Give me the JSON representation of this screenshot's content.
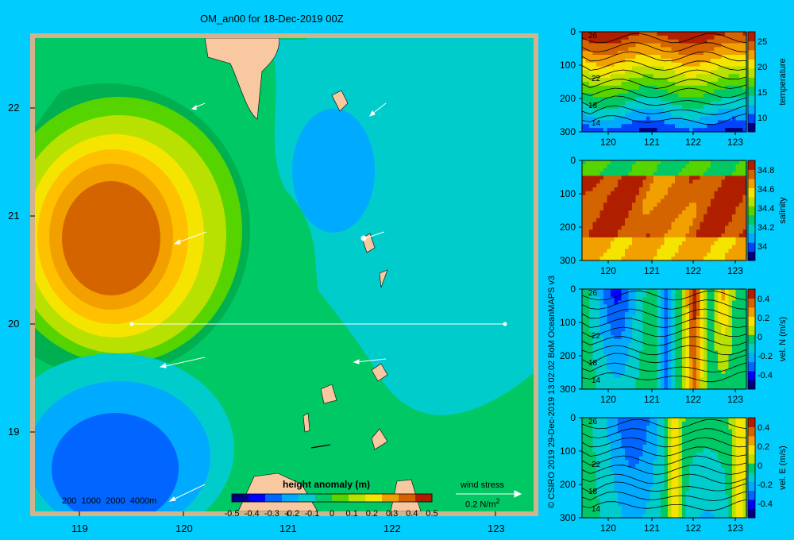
{
  "map": {
    "title": "OM_an00 for 18-Dec-2019 00Z",
    "lat_ticks": [
      "22",
      "21",
      "20",
      "19"
    ],
    "lon_ticks": [
      "119",
      "120",
      "121",
      "122",
      "123"
    ],
    "depth_legend": [
      "200",
      "1000",
      "2000",
      "4000m"
    ],
    "colorbar": {
      "label": "height anomaly (m)",
      "ticks": [
        "-0.5",
        "-0.4",
        "-0.3",
        "-0.2",
        "-0.1",
        "0",
        "0.1",
        "0.2",
        "0.3",
        "0.4",
        "0.5"
      ],
      "colors": [
        "#00007f",
        "#0000ff",
        "#0066ff",
        "#00aaff",
        "#00cccc",
        "#00c864",
        "#55d400",
        "#b8e000",
        "#f5e400",
        "#f2a000",
        "#d46400",
        "#b01e00"
      ]
    },
    "wind_key": {
      "label": "wind stress",
      "value": "0.2 N/m",
      "exponent": "2"
    }
  },
  "credit": "© CSIRO 2019   29-Dec-2019 13:02:02 BoM OceanMAPS v3",
  "panels": [
    {
      "id": "temperature",
      "label": "temperature",
      "cbar_ticks": [
        "25",
        "20",
        "15",
        "10"
      ],
      "contour_labels": [
        "26",
        "22",
        "18",
        "14"
      ]
    },
    {
      "id": "salinity",
      "label": "salinity",
      "cbar_ticks": [
        "34.8",
        "34.6",
        "34.4",
        "34.2",
        "34"
      ],
      "contour_labels": []
    },
    {
      "id": "vel-n",
      "label": "vel. N (m/s)",
      "cbar_ticks": [
        "0.4",
        "0.2",
        "0",
        "-0.2",
        "-0.4"
      ],
      "contour_labels": [
        "26",
        "22",
        "18",
        "14"
      ]
    },
    {
      "id": "vel-e",
      "label": "vel. E (m/s)",
      "cbar_ticks": [
        "0.4",
        "0.2",
        "0",
        "-0.2",
        "-0.4"
      ],
      "contour_labels": [
        "26",
        "22",
        "18",
        "14"
      ]
    }
  ],
  "section_axes": {
    "depth_ticks": [
      "0",
      "100",
      "200",
      "300"
    ],
    "lon_ticks": [
      "120",
      "121",
      "122",
      "123"
    ]
  }
}
